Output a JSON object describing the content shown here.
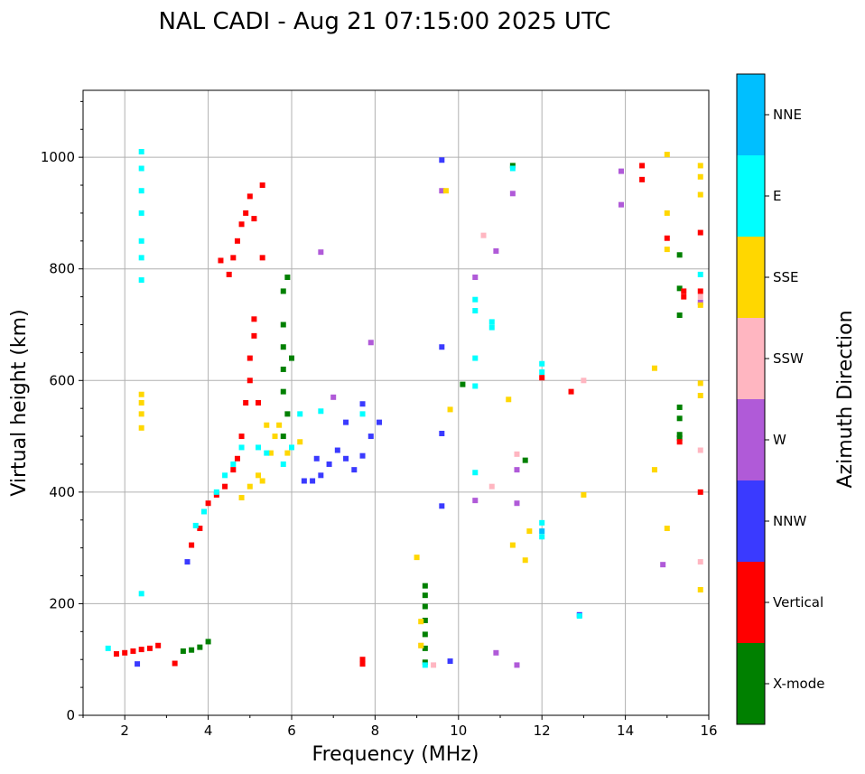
{
  "chart_data": {
    "type": "scatter",
    "title": "NAL CADI - Aug 21 07:15:00 2025 UTC",
    "xlabel": "Frequency (MHz)",
    "ylabel": "Virtual height (km)",
    "xlim": [
      1,
      16
    ],
    "ylim": [
      0,
      1120
    ],
    "xticks": [
      2,
      4,
      6,
      8,
      10,
      12,
      14,
      16
    ],
    "yticks": [
      0,
      200,
      400,
      600,
      800,
      1000
    ],
    "grid": true,
    "colorbar": {
      "label": "Azimuth Direction",
      "categories": [
        {
          "name": "X-mode",
          "color": "#008000"
        },
        {
          "name": "Vertical",
          "color": "#ff0000"
        },
        {
          "name": "NNW",
          "color": "#3a3aff"
        },
        {
          "name": "W",
          "color": "#b05ad8"
        },
        {
          "name": "SSW",
          "color": "#ffb6c1"
        },
        {
          "name": "SSE",
          "color": "#ffd700"
        },
        {
          "name": "E",
          "color": "#00ffff"
        },
        {
          "name": "NNE",
          "color": "#00bfff"
        }
      ]
    },
    "series": [
      {
        "name": "X-mode",
        "points": [
          [
            9.2,
            95
          ],
          [
            9.2,
            120
          ],
          [
            9.2,
            145
          ],
          [
            9.2,
            170
          ],
          [
            9.2,
            195
          ],
          [
            9.2,
            215
          ],
          [
            9.2,
            232
          ],
          [
            3.4,
            115
          ],
          [
            3.6,
            117
          ],
          [
            3.8,
            122
          ],
          [
            4.0,
            132
          ],
          [
            5.8,
            700
          ],
          [
            5.8,
            660
          ],
          [
            5.8,
            620
          ],
          [
            5.8,
            580
          ],
          [
            5.9,
            540
          ],
          [
            5.8,
            500
          ],
          [
            6.0,
            640
          ],
          [
            5.8,
            760
          ],
          [
            5.9,
            785
          ],
          [
            10.1,
            593
          ],
          [
            11.6,
            457
          ],
          [
            15.3,
            825
          ],
          [
            15.3,
            765
          ],
          [
            15.3,
            717
          ],
          [
            15.3,
            552
          ],
          [
            15.3,
            532
          ],
          [
            15.3,
            497
          ],
          [
            15.3,
            503
          ],
          [
            11.3,
            985
          ]
        ]
      },
      {
        "name": "Vertical",
        "points": [
          [
            1.8,
            110
          ],
          [
            2.0,
            112
          ],
          [
            2.2,
            115
          ],
          [
            2.4,
            118
          ],
          [
            2.6,
            120
          ],
          [
            2.8,
            125
          ],
          [
            3.2,
            93
          ],
          [
            7.7,
            92
          ],
          [
            7.7,
            100
          ],
          [
            3.6,
            305
          ],
          [
            3.8,
            335
          ],
          [
            4.0,
            380
          ],
          [
            4.2,
            395
          ],
          [
            4.4,
            410
          ],
          [
            4.6,
            440
          ],
          [
            4.7,
            460
          ],
          [
            4.8,
            500
          ],
          [
            4.9,
            560
          ],
          [
            5.0,
            600
          ],
          [
            5.0,
            640
          ],
          [
            5.1,
            680
          ],
          [
            5.1,
            710
          ],
          [
            5.2,
            560
          ],
          [
            4.3,
            815
          ],
          [
            4.5,
            790
          ],
          [
            4.6,
            820
          ],
          [
            4.7,
            850
          ],
          [
            4.8,
            880
          ],
          [
            4.9,
            900
          ],
          [
            5.0,
            930
          ],
          [
            5.1,
            890
          ],
          [
            5.3,
            950
          ],
          [
            5.3,
            820
          ],
          [
            12.0,
            605
          ],
          [
            12.7,
            580
          ],
          [
            14.4,
            985
          ],
          [
            14.4,
            960
          ],
          [
            15.0,
            855
          ],
          [
            15.4,
            760
          ],
          [
            15.4,
            750
          ],
          [
            15.3,
            490
          ],
          [
            15.8,
            865
          ],
          [
            15.8,
            760
          ],
          [
            15.8,
            400
          ]
        ]
      },
      {
        "name": "NNW",
        "points": [
          [
            2.3,
            92
          ],
          [
            3.5,
            275
          ],
          [
            6.3,
            420
          ],
          [
            6.5,
            420
          ],
          [
            6.7,
            430
          ],
          [
            6.6,
            460
          ],
          [
            6.9,
            450
          ],
          [
            7.1,
            475
          ],
          [
            7.3,
            460
          ],
          [
            7.5,
            440
          ],
          [
            7.7,
            465
          ],
          [
            7.9,
            500
          ],
          [
            8.1,
            525
          ],
          [
            7.3,
            525
          ],
          [
            7.7,
            558
          ],
          [
            9.6,
            995
          ],
          [
            9.6,
            660
          ],
          [
            9.6,
            505
          ],
          [
            9.6,
            375
          ],
          [
            9.8,
            97
          ],
          [
            12.9,
            180
          ]
        ]
      },
      {
        "name": "W",
        "points": [
          [
            6.7,
            830
          ],
          [
            7.9,
            668
          ],
          [
            7.0,
            570
          ],
          [
            9.6,
            940
          ],
          [
            10.4,
            385
          ],
          [
            10.4,
            785
          ],
          [
            10.9,
            832
          ],
          [
            10.9,
            112
          ],
          [
            11.3,
            935
          ],
          [
            11.4,
            440
          ],
          [
            11.4,
            90
          ],
          [
            11.4,
            380
          ],
          [
            13.9,
            975
          ],
          [
            13.9,
            915
          ],
          [
            14.9,
            270
          ],
          [
            15.8,
            740
          ]
        ]
      },
      {
        "name": "SSW",
        "points": [
          [
            9.1,
            125
          ],
          [
            9.4,
            90
          ],
          [
            10.6,
            860
          ],
          [
            10.8,
            410
          ],
          [
            11.4,
            468
          ],
          [
            13.0,
            600
          ],
          [
            15.8,
            475
          ],
          [
            15.8,
            275
          ],
          [
            15.8,
            750
          ]
        ]
      },
      {
        "name": "SSE",
        "points": [
          [
            2.4,
            515
          ],
          [
            2.4,
            540
          ],
          [
            2.4,
            560
          ],
          [
            2.4,
            575
          ],
          [
            4.8,
            390
          ],
          [
            5.0,
            410
          ],
          [
            5.2,
            430
          ],
          [
            5.5,
            470
          ],
          [
            5.6,
            500
          ],
          [
            5.7,
            520
          ],
          [
            5.3,
            420
          ],
          [
            5.4,
            520
          ],
          [
            5.9,
            470
          ],
          [
            6.2,
            490
          ],
          [
            9.0,
            283
          ],
          [
            9.1,
            168
          ],
          [
            9.1,
            125
          ],
          [
            9.7,
            940
          ],
          [
            9.8,
            548
          ],
          [
            11.2,
            566
          ],
          [
            11.3,
            305
          ],
          [
            11.6,
            278
          ],
          [
            11.7,
            330
          ],
          [
            13.0,
            395
          ],
          [
            14.7,
            440
          ],
          [
            14.7,
            622
          ],
          [
            15.0,
            1005
          ],
          [
            15.0,
            900
          ],
          [
            15.0,
            835
          ],
          [
            15.0,
            335
          ],
          [
            15.8,
            985
          ],
          [
            15.8,
            965
          ],
          [
            15.8,
            933
          ],
          [
            15.8,
            735
          ],
          [
            15.8,
            595
          ],
          [
            15.8,
            573
          ],
          [
            15.8,
            225
          ]
        ]
      },
      {
        "name": "E",
        "points": [
          [
            1.6,
            120
          ],
          [
            2.4,
            780
          ],
          [
            2.4,
            820
          ],
          [
            2.4,
            850
          ],
          [
            2.4,
            900
          ],
          [
            2.4,
            940
          ],
          [
            2.4,
            980
          ],
          [
            2.4,
            1010
          ],
          [
            2.4,
            218
          ],
          [
            3.7,
            340
          ],
          [
            3.9,
            365
          ],
          [
            4.2,
            400
          ],
          [
            4.4,
            430
          ],
          [
            4.6,
            450
          ],
          [
            4.8,
            480
          ],
          [
            5.2,
            480
          ],
          [
            5.4,
            470
          ],
          [
            5.8,
            450
          ],
          [
            6.0,
            480
          ],
          [
            6.2,
            540
          ],
          [
            6.7,
            545
          ],
          [
            7.7,
            540
          ],
          [
            9.2,
            90
          ],
          [
            10.4,
            745
          ],
          [
            10.4,
            725
          ],
          [
            10.4,
            640
          ],
          [
            10.4,
            590
          ],
          [
            10.4,
            435
          ],
          [
            10.8,
            705
          ],
          [
            10.8,
            695
          ],
          [
            11.3,
            980
          ],
          [
            12.0,
            630
          ],
          [
            12.0,
            615
          ],
          [
            12.0,
            345
          ],
          [
            12.0,
            320
          ],
          [
            12.9,
            178
          ],
          [
            15.8,
            790
          ]
        ]
      },
      {
        "name": "NNE",
        "points": [
          [
            12.0,
            330
          ]
        ]
      }
    ]
  }
}
